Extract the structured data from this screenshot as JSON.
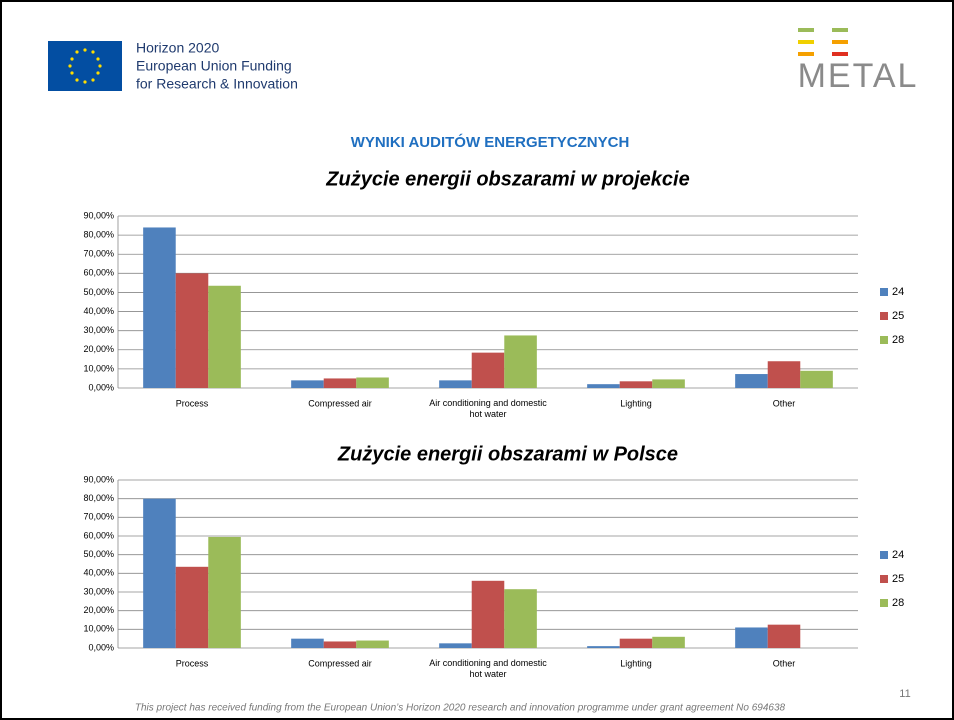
{
  "header": {
    "lines": [
      "Horizon 2020",
      "European Union Funding",
      "for Research & Innovation"
    ],
    "logo": "METAL",
    "heading": "WYNIKI AUDITÓW ENERGETYCZNYCH"
  },
  "chart_data": [
    {
      "type": "bar",
      "title": "Zużycie energii obszarami w projekcie",
      "categories": [
        "Process",
        "Compressed air",
        "Air conditioning and domestic hot water",
        "Lighting",
        "Other"
      ],
      "series": [
        {
          "name": "24",
          "color": "#4f81bd",
          "values": [
            84,
            4,
            4,
            2,
            7.3
          ]
        },
        {
          "name": "25",
          "color": "#c0504d",
          "values": [
            60,
            5,
            18.5,
            3.5,
            14
          ]
        },
        {
          "name": "28",
          "color": "#9bbb59",
          "values": [
            53.5,
            5.5,
            27.5,
            4.5,
            9
          ]
        }
      ],
      "ylim": [
        0,
        90
      ],
      "yticks": [
        {
          "value": 0,
          "label": "0,00%"
        },
        {
          "value": 10,
          "label": "10,00%"
        },
        {
          "value": 20,
          "label": "20,00%"
        },
        {
          "value": 30,
          "label": "30,00%"
        },
        {
          "value": 40,
          "label": "40,00%"
        },
        {
          "value": 50,
          "label": "50,00%"
        },
        {
          "value": 60,
          "label": "60,00%"
        },
        {
          "value": 70,
          "label": "70,00%"
        },
        {
          "value": 80,
          "label": "80,00%"
        },
        {
          "value": 90,
          "label": "90,00%"
        }
      ],
      "grid": true,
      "legend": "right"
    },
    {
      "type": "bar",
      "title": "Zużycie energii obszarami w Polsce",
      "categories": [
        "Process",
        "Compressed air",
        "Air conditioning and domestic hot water",
        "Lighting",
        "Other"
      ],
      "series": [
        {
          "name": "24",
          "color": "#4f81bd",
          "values": [
            80,
            5,
            2.5,
            1,
            11
          ]
        },
        {
          "name": "25",
          "color": "#c0504d",
          "values": [
            43.5,
            3.5,
            36,
            5,
            12.5
          ]
        },
        {
          "name": "28",
          "color": "#9bbb59",
          "values": [
            59.5,
            4,
            31.5,
            6,
            0
          ]
        }
      ],
      "ylim": [
        0,
        90
      ],
      "yticks": [
        {
          "value": 0,
          "label": "0,00%"
        },
        {
          "value": 10,
          "label": "10,00%"
        },
        {
          "value": 20,
          "label": "20,00%"
        },
        {
          "value": 30,
          "label": "30,00%"
        },
        {
          "value": 40,
          "label": "40,00%"
        },
        {
          "value": 50,
          "label": "50,00%"
        },
        {
          "value": 60,
          "label": "60,00%"
        },
        {
          "value": 70,
          "label": "70,00%"
        },
        {
          "value": 80,
          "label": "80,00%"
        },
        {
          "value": 90,
          "label": "90,00%"
        }
      ],
      "grid": true,
      "legend": "right"
    }
  ],
  "page_number": "11",
  "footer": "This project has received  funding from the European Union’s Horizon 2020 research and innovation programme under grant agreement No 694638"
}
